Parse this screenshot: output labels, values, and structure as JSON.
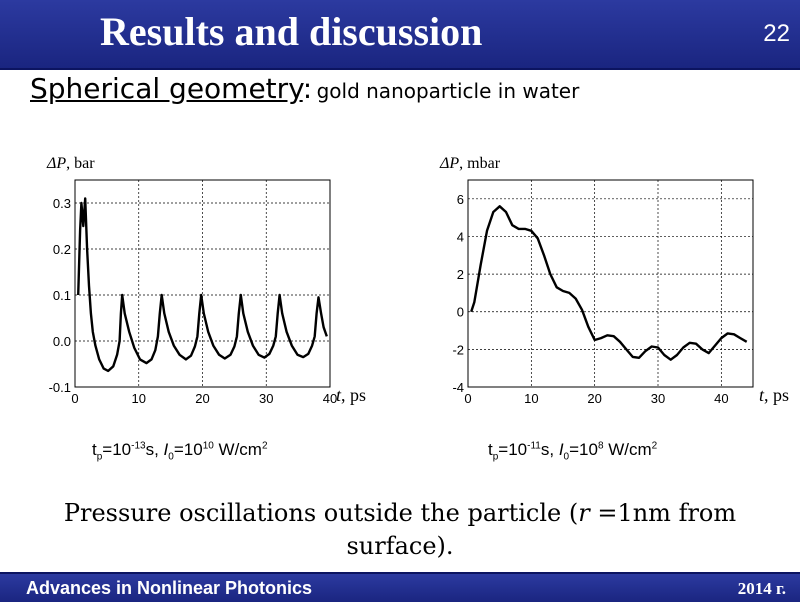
{
  "slide": {
    "title": "Results and discussion",
    "number": "22",
    "subtitle_main": "Spherical geometry",
    "subtitle_colon": ":",
    "subtitle_rest": "gold nanoparticle in water",
    "conclusion_a": "Pressure oscillations outside the particle (",
    "conclusion_r": "r",
    "conclusion_b": " =1nm from surface).",
    "footer_left": "Advances in Nonlinear Photonics",
    "footer_right": "2014 г."
  },
  "captions": [
    {
      "t": "t",
      "p": "p",
      "eq1": "=10",
      "e1": "-13",
      "unit1": "s, ",
      "I": "I",
      "zero": "0",
      "eq2": "=10",
      "e2": "10",
      "unit2": " W/cm",
      "sq": "2"
    },
    {
      "t": "t",
      "p": "p",
      "eq1": "=10",
      "e1": "-11",
      "unit1": "s, ",
      "I": "I",
      "zero": "0",
      "eq2": "=10",
      "e2": "8",
      "unit2": " W/cm",
      "sq": "2"
    }
  ],
  "chart_data": [
    {
      "type": "line",
      "ylabel_symbol": "ΔP",
      "ylabel_unit": "bar",
      "xlabel_symbol": "t",
      "xlabel_unit": "ps",
      "xlim": [
        0,
        40
      ],
      "ylim": [
        -0.1,
        0.35
      ],
      "xticks": [
        0,
        10,
        20,
        30,
        40
      ],
      "yticks": [
        -0.1,
        0.0,
        0.1,
        0.2,
        0.3
      ],
      "ytick_labels": [
        "-0.1",
        "0.0",
        "0.1",
        "0.2",
        "0.3"
      ],
      "grid": true,
      "series": [
        {
          "x": [
            0.5,
            0.8,
            1.0,
            1.3,
            1.6,
            1.9,
            2.2,
            2.5,
            2.8,
            3.2,
            3.8,
            4.5,
            5.2,
            6.0,
            6.6,
            7.0,
            7.2,
            7.4,
            7.8,
            8.5,
            9.3,
            10.2,
            11.2,
            12.0,
            12.6,
            13.0,
            13.3,
            13.6,
            14.0,
            14.7,
            15.5,
            16.4,
            17.4,
            18.2,
            18.8,
            19.2,
            19.5,
            19.8,
            20.2,
            20.9,
            21.7,
            22.6,
            23.5,
            24.4,
            25.0,
            25.4,
            25.7,
            26.0,
            26.4,
            27.1,
            27.9,
            28.8,
            29.7,
            30.5,
            31.1,
            31.5,
            31.8,
            32.1,
            32.5,
            33.2,
            34.0,
            34.9,
            35.8,
            36.6,
            37.2,
            37.6,
            37.9,
            38.2,
            38.6,
            39.0,
            39.5
          ],
          "y": [
            0.1,
            0.24,
            0.3,
            0.25,
            0.31,
            0.2,
            0.12,
            0.06,
            0.02,
            -0.01,
            -0.04,
            -0.06,
            -0.065,
            -0.055,
            -0.03,
            0.0,
            0.06,
            0.1,
            0.06,
            0.02,
            -0.015,
            -0.04,
            -0.048,
            -0.04,
            -0.02,
            0.01,
            0.06,
            0.1,
            0.06,
            0.02,
            -0.01,
            -0.03,
            -0.04,
            -0.032,
            -0.012,
            0.01,
            0.06,
            0.1,
            0.06,
            0.02,
            -0.01,
            -0.03,
            -0.038,
            -0.03,
            -0.012,
            0.01,
            0.06,
            0.1,
            0.06,
            0.02,
            -0.01,
            -0.03,
            -0.036,
            -0.028,
            -0.01,
            0.01,
            0.06,
            0.1,
            0.06,
            0.02,
            -0.01,
            -0.03,
            -0.035,
            -0.028,
            -0.01,
            0.01,
            0.06,
            0.095,
            0.06,
            0.03,
            0.01
          ]
        }
      ]
    },
    {
      "type": "line",
      "ylabel_symbol": "ΔP",
      "ylabel_unit": "mbar",
      "xlabel_symbol": "t",
      "xlabel_unit": "ps",
      "xlim": [
        0,
        45
      ],
      "ylim": [
        -4,
        7
      ],
      "xticks": [
        0,
        10,
        20,
        30,
        40
      ],
      "yticks": [
        -4,
        -2,
        0,
        2,
        4,
        6
      ],
      "ytick_labels": [
        "-4",
        "-2",
        "0",
        "2",
        "4",
        "6"
      ],
      "grid": true,
      "series": [
        {
          "x": [
            0.5,
            1,
            2,
            3,
            4,
            5,
            6,
            7,
            8,
            9,
            10,
            11,
            12,
            13,
            14,
            15,
            16,
            17,
            18,
            19,
            20,
            21,
            22,
            23,
            24,
            25,
            26,
            27,
            28,
            29,
            30,
            31,
            32,
            33,
            34,
            35,
            36,
            37,
            38,
            39,
            40,
            41,
            42,
            43,
            44
          ],
          "y": [
            0,
            0.5,
            2.5,
            4.3,
            5.3,
            5.6,
            5.3,
            4.6,
            4.4,
            4.4,
            4.3,
            3.9,
            3.0,
            2.0,
            1.3,
            1.1,
            1.0,
            0.7,
            0.1,
            -0.8,
            -1.5,
            -1.4,
            -1.25,
            -1.3,
            -1.6,
            -2.0,
            -2.4,
            -2.45,
            -2.1,
            -1.85,
            -1.9,
            -2.3,
            -2.55,
            -2.3,
            -1.9,
            -1.65,
            -1.7,
            -2.0,
            -2.2,
            -1.8,
            -1.4,
            -1.15,
            -1.2,
            -1.4,
            -1.6
          ]
        }
      ]
    }
  ]
}
